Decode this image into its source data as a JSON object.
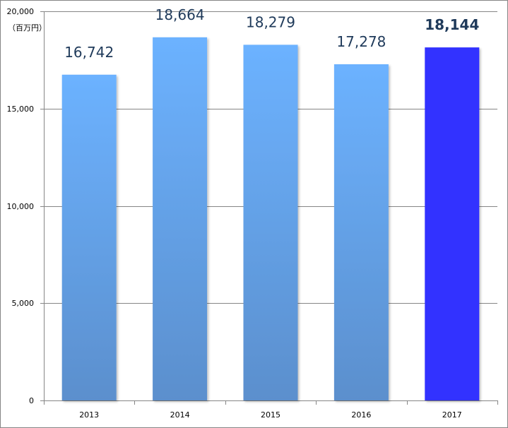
{
  "chart_data": {
    "type": "bar",
    "unit_label": "（百万円）",
    "categories": [
      "2013",
      "2014",
      "2015",
      "2016",
      "2017"
    ],
    "values": [
      16742,
      18664,
      18279,
      17278,
      18144
    ],
    "data_labels": [
      "16,742",
      "18,664",
      "18,279",
      "17,278",
      "18,144"
    ],
    "highlight_index": 4,
    "ylim": [
      0,
      20000
    ],
    "yticks": [
      0,
      5000,
      10000,
      15000,
      20000
    ],
    "ytick_labels": [
      "0",
      "5,000",
      "10,000",
      "15,000",
      "20,000"
    ],
    "grid": true,
    "colors": {
      "bar_top": "#6cb2ff",
      "bar_bottom": "#5b8fcd",
      "highlight": "#3333ff",
      "gridline": "#868686",
      "label": "#1f3a5a"
    }
  }
}
